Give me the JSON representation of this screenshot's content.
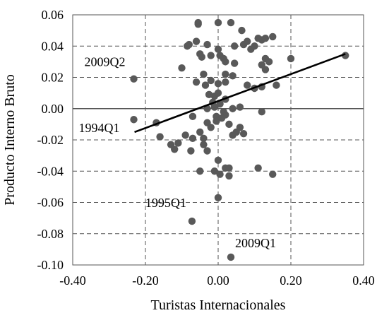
{
  "chart_data": {
    "type": "scatter",
    "title": "",
    "xlabel": "Turistas Internacionales",
    "ylabel": "Producto Interno Bruto",
    "xlim": [
      -0.4,
      0.4
    ],
    "ylim": [
      -0.1,
      0.06
    ],
    "x_ticks": [
      -0.4,
      -0.2,
      0.0,
      0.2,
      0.4
    ],
    "x_tick_labels": [
      "-0.40",
      "-0.20",
      "0.00",
      "0.20",
      "0.40"
    ],
    "y_ticks": [
      -0.1,
      -0.08,
      -0.06,
      -0.04,
      -0.02,
      0.0,
      0.02,
      0.04,
      0.06
    ],
    "y_tick_labels": [
      "-0.10",
      "-0.08",
      "-0.06",
      "-0.04",
      "-0.02",
      "0.00",
      "0.02",
      "0.04",
      "0.06"
    ],
    "grid": true,
    "marker_color": "#595959",
    "trend_color": "#000000",
    "trendline": {
      "x": [
        -0.23,
        0.35
      ],
      "y": [
        -0.015,
        0.035
      ]
    },
    "annotations": [
      {
        "text": "2009Q2",
        "x": -0.232,
        "y": 0.019
      },
      {
        "text": "1994Q1",
        "x": -0.232,
        "y": -0.007
      },
      {
        "text": "1995Q1",
        "x": -0.072,
        "y": -0.072
      },
      {
        "text": "2009Q1",
        "x": 0.035,
        "y": -0.095
      }
    ],
    "points": [
      [
        -0.232,
        0.019
      ],
      [
        -0.232,
        -0.007
      ],
      [
        -0.072,
        -0.072
      ],
      [
        0.035,
        -0.095
      ],
      [
        0.35,
        0.034
      ],
      [
        -0.055,
        0.055
      ],
      [
        -0.055,
        0.054
      ],
      [
        0.035,
        0.055
      ],
      [
        0.0,
        0.055
      ],
      [
        0.065,
        0.05
      ],
      [
        -0.06,
        0.043
      ],
      [
        -0.08,
        0.041
      ],
      [
        -0.085,
        0.04
      ],
      [
        -0.03,
        0.041
      ],
      [
        0.0,
        0.038
      ],
      [
        0.045,
        0.04
      ],
      [
        0.07,
        0.041
      ],
      [
        0.1,
        0.04
      ],
      [
        0.09,
        0.038
      ],
      [
        0.12,
        0.044
      ],
      [
        0.13,
        0.045
      ],
      [
        0.15,
        0.046
      ],
      [
        -0.02,
        0.034
      ],
      [
        -0.05,
        0.035
      ],
      [
        -0.045,
        0.033
      ],
      [
        0.005,
        0.034
      ],
      [
        0.015,
        0.032
      ],
      [
        0.13,
        0.032
      ],
      [
        0.14,
        0.03
      ],
      [
        0.2,
        0.032
      ],
      [
        -0.1,
        0.026
      ],
      [
        -0.04,
        0.022
      ],
      [
        0.02,
        0.022
      ],
      [
        0.04,
        0.021
      ],
      [
        0.13,
        0.025
      ],
      [
        0.12,
        0.028
      ],
      [
        0.045,
        0.029
      ],
      [
        -0.02,
        0.018
      ],
      [
        -0.06,
        0.017
      ],
      [
        -0.035,
        0.015
      ],
      [
        0.0,
        0.016
      ],
      [
        0.02,
        0.017
      ],
      [
        0.08,
        0.015
      ],
      [
        0.1,
        0.013
      ],
      [
        0.12,
        0.014
      ],
      [
        0.16,
        0.015
      ],
      [
        -0.025,
        0.009
      ],
      [
        -0.01,
        0.008
      ],
      [
        0.0,
        0.01
      ],
      [
        0.02,
        0.006
      ],
      [
        -0.015,
        0.004
      ],
      [
        0.005,
        0.003
      ],
      [
        0.06,
        0.001
      ],
      [
        0.04,
        0.0
      ],
      [
        -0.01,
        0.001
      ],
      [
        -0.03,
        0.0
      ],
      [
        0.015,
        -0.002
      ],
      [
        0.02,
        -0.004
      ],
      [
        -0.005,
        -0.005
      ],
      [
        -0.005,
        -0.008
      ],
      [
        0.01,
        -0.006
      ],
      [
        0.03,
        -0.01
      ],
      [
        0.06,
        -0.012
      ],
      [
        0.05,
        -0.015
      ],
      [
        0.07,
        -0.016
      ],
      [
        0.04,
        -0.017
      ],
      [
        -0.03,
        -0.009
      ],
      [
        -0.02,
        -0.012
      ],
      [
        -0.05,
        -0.015
      ],
      [
        -0.04,
        -0.019
      ],
      [
        -0.07,
        -0.019
      ],
      [
        -0.09,
        -0.017
      ],
      [
        -0.17,
        -0.009
      ],
      [
        -0.16,
        -0.018
      ],
      [
        -0.11,
        -0.022
      ],
      [
        -0.13,
        -0.023
      ],
      [
        -0.04,
        -0.023
      ],
      [
        -0.03,
        -0.027
      ],
      [
        -0.075,
        -0.027
      ],
      [
        -0.12,
        -0.026
      ],
      [
        0.0,
        -0.033
      ],
      [
        0.02,
        -0.038
      ],
      [
        -0.05,
        -0.04
      ],
      [
        -0.01,
        -0.04
      ],
      [
        0.005,
        -0.042
      ],
      [
        0.03,
        -0.043
      ],
      [
        0.03,
        -0.038
      ],
      [
        0.11,
        -0.038
      ],
      [
        0.15,
        -0.042
      ],
      [
        0.0,
        -0.057
      ],
      [
        0.12,
        -0.002
      ],
      [
        0.08,
        0.043
      ],
      [
        0.11,
        0.045
      ],
      [
        0.02,
        0.03
      ],
      [
        -0.07,
        -0.005
      ]
    ]
  }
}
